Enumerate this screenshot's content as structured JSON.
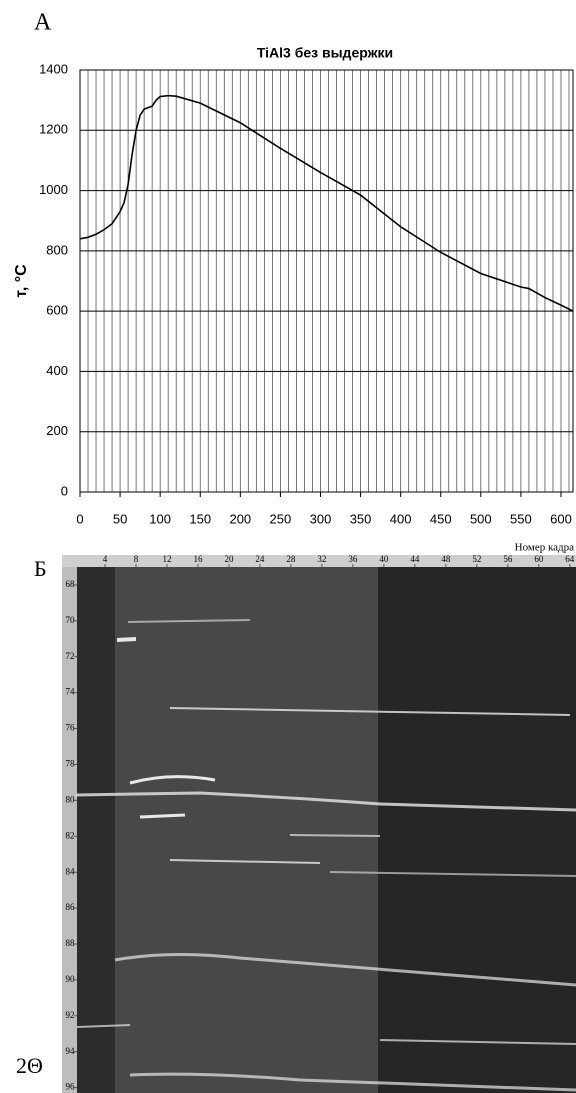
{
  "chart_data": [
    {
      "type": "line",
      "panel_label": "А",
      "title": "TiAl3 без выдержки",
      "y_label": "т, °С",
      "x": [
        0,
        10,
        20,
        30,
        40,
        50,
        55,
        60,
        65,
        70,
        75,
        80,
        90,
        95,
        100,
        110,
        120,
        150,
        200,
        250,
        300,
        350,
        400,
        450,
        500,
        550,
        560,
        580,
        600,
        615
      ],
      "series": [
        {
          "color": "#000000",
          "values": [
            840,
            845,
            855,
            870,
            890,
            930,
            960,
            1020,
            1120,
            1200,
            1250,
            1270,
            1280,
            1300,
            1312,
            1315,
            1313,
            1290,
            1225,
            1140,
            1060,
            985,
            880,
            795,
            725,
            680,
            675,
            645,
            620,
            600
          ]
        }
      ],
      "xlim": [
        0,
        615
      ],
      "xticks": [
        0,
        50,
        100,
        150,
        200,
        250,
        300,
        350,
        400,
        450,
        500,
        550,
        600
      ],
      "ylim": [
        0,
        1400
      ],
      "yticks": [
        0,
        200,
        400,
        600,
        800,
        1000,
        1200,
        1400
      ],
      "grid": true
    },
    {
      "type": "image",
      "panel_label": "Б",
      "x_label": "Номер кадра",
      "y_label": "2Θ",
      "xlim": [
        0,
        64.8
      ],
      "xticks": [
        4,
        8,
        12,
        16,
        20,
        24,
        28,
        32,
        36,
        40,
        44,
        48,
        52,
        56,
        60,
        64
      ],
      "ylim": [
        67,
        96.3
      ],
      "yticks": [
        68,
        70,
        72,
        74,
        76,
        78,
        80,
        82,
        84,
        86,
        88,
        90,
        92,
        94,
        96
      ]
    }
  ]
}
